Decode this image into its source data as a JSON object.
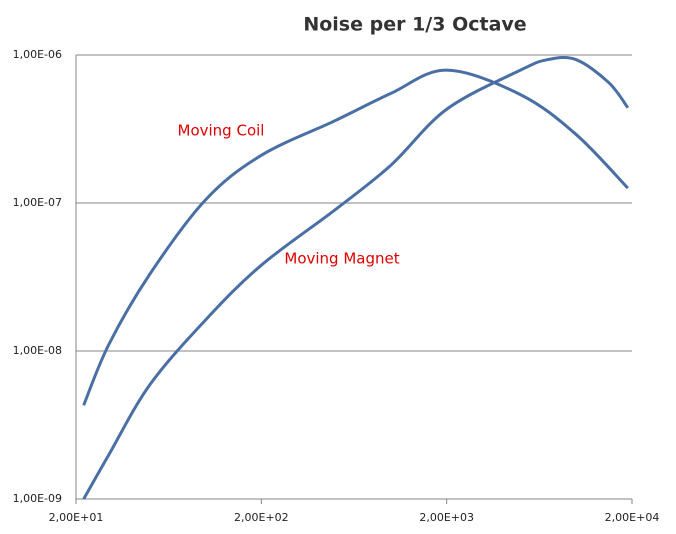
{
  "chart_data": {
    "type": "line",
    "title": "Noise per 1/3 Octave",
    "log_x": true,
    "log_y": true,
    "grid": "y",
    "xlim": [
      20,
      20000
    ],
    "xticks": [
      {
        "value": 20,
        "label": "2,00E+01"
      },
      {
        "value": 200,
        "label": "2,00E+02"
      },
      {
        "value": 2000,
        "label": "2,00E+03"
      },
      {
        "value": 20000,
        "label": "2,00E+04"
      }
    ],
    "ylim": [
      1e-09,
      1e-06
    ],
    "yticks": [
      {
        "value": 1e-09,
        "label": "1,00E-09"
      },
      {
        "value": 1e-08,
        "label": "1,00E-08"
      },
      {
        "value": 1e-07,
        "label": "1,00E-07"
      },
      {
        "value": 1e-06,
        "label": "1,00E-06"
      }
    ],
    "label_color": "#e00000",
    "series": [
      {
        "name": "Moving Coil",
        "color": "#4a6fa5",
        "x": [
          22,
          30,
          50,
          100,
          200,
          500,
          1000,
          2000,
          5000,
          10000,
          19000
        ],
        "values": [
          4.3e-09,
          1.1e-08,
          3.3e-08,
          1.05e-07,
          2.1e-07,
          3.6e-07,
          5.5e-07,
          7.9e-07,
          5.4e-07,
          2.9e-07,
          1.26e-07
        ]
      },
      {
        "name": "Moving Magnet",
        "color": "#4a6fa5",
        "x": [
          22,
          30,
          50,
          100,
          200,
          500,
          1000,
          2000,
          5000,
          7000,
          10000,
          15000,
          19000
        ],
        "values": [
          1e-09,
          1.98e-09,
          5.9e-09,
          1.62e-08,
          3.8e-08,
          9e-08,
          1.8e-07,
          4.3e-07,
          7.9e-07,
          9.3e-07,
          9.3e-07,
          6.5e-07,
          4.4e-07
        ]
      }
    ]
  }
}
